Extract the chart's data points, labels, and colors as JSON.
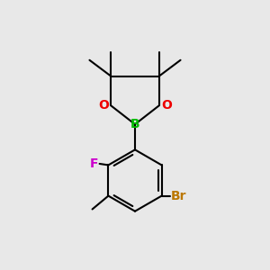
{
  "background_color": "#e8e8e8",
  "bond_color": "#000000",
  "boron_color": "#00bb00",
  "oxygen_color": "#ee0000",
  "fluorine_color": "#cc00cc",
  "bromine_color": "#bb7700",
  "figsize": [
    3.0,
    3.0
  ],
  "dpi": 100,
  "xlim": [
    0,
    10
  ],
  "ylim": [
    0,
    10
  ]
}
